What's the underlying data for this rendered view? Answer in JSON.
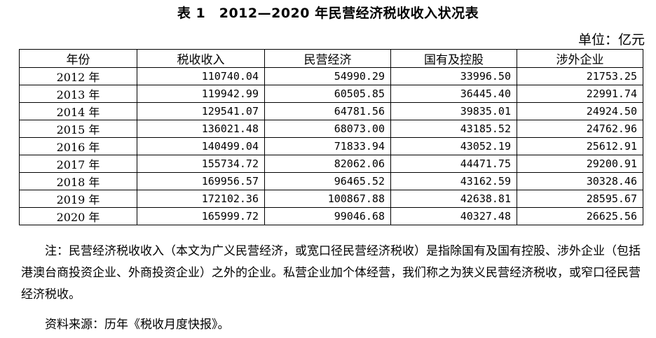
{
  "title": "表 1　2012—2020 年民营经济税收收入状况表",
  "unit": "单位：亿元",
  "table": {
    "headers": [
      "年份",
      "税收收入",
      "民营经济",
      "国有及控股",
      "涉外企业"
    ],
    "rows": [
      [
        "2012 年",
        "110740.04",
        "54990.29",
        "33996.50",
        "21753.25"
      ],
      [
        "2013 年",
        "119942.99",
        "60505.85",
        "36445.40",
        "22991.74"
      ],
      [
        "2014 年",
        "129541.07",
        "64781.56",
        "39835.01",
        "24924.50"
      ],
      [
        "2015 年",
        "136021.48",
        "68073.00",
        "43185.52",
        "24762.96"
      ],
      [
        "2016 年",
        "140499.04",
        "71833.94",
        "43052.19",
        "25612.91"
      ],
      [
        "2017 年",
        "155734.72",
        "82062.06",
        "44471.75",
        "29200.91"
      ],
      [
        "2018 年",
        "169956.57",
        "96465.52",
        "43162.59",
        "30328.46"
      ],
      [
        "2019 年",
        "172102.36",
        "100867.88",
        "42638.81",
        "28595.67"
      ],
      [
        "2020 年",
        "165999.72",
        "99046.68",
        "40327.48",
        "26625.56"
      ]
    ]
  },
  "note": "注：民营经济税收收入（本文为广义民营经济，或宽口径民营经济税收）是指除国有及国有控股、涉外企业（包括港澳台商投资企业、外商投资企业）之外的企业。私营企业加个体经营，我们称之为狭义民营经济税收，或窄口径民营经济税收。",
  "source": "资料来源：历年《税收月度快报》。"
}
